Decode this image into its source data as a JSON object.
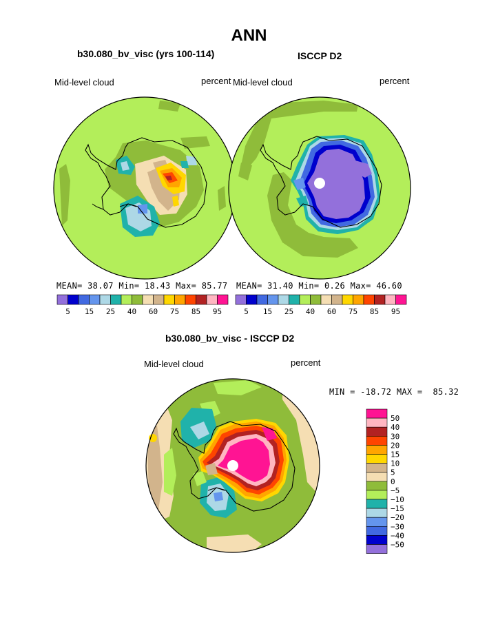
{
  "page": {
    "title": "ANN",
    "panel_left_title": "b30.080_bv_visc (yrs 100-114)",
    "panel_right_title": "ISCCP D2",
    "panel_diff_title": "b30.080_bv_visc - ISCCP D2"
  },
  "chart_data": [
    {
      "type": "heatmap",
      "projection": "polar-stereographic, south pole",
      "title": "b30.080_bv_visc (yrs 100-114)",
      "variable_label": "Mid-level cloud",
      "units_label": "percent",
      "stats": {
        "mean_label": "MEAN=",
        "mean": "38.07",
        "min_label": "Min=",
        "min": "18.43",
        "max_label": "Max=",
        "max": "85.77"
      },
      "colorbar": {
        "orientation": "horizontal",
        "levels": [
          5,
          10,
          15,
          20,
          25,
          30,
          40,
          50,
          60,
          70,
          75,
          80,
          85,
          90,
          95
        ],
        "tick_labels": [
          "5",
          "15",
          "25",
          "40",
          "60",
          "75",
          "85",
          "95"
        ],
        "colors": [
          "#9370DB",
          "#0000CD",
          "#4169E1",
          "#6495ED",
          "#ADD8E6",
          "#20B2AA",
          "#B3EE5A",
          "#8FBC3A",
          "#F5DEB3",
          "#D2B48C",
          "#FFD700",
          "#FFA500",
          "#FF4500",
          "#B22222",
          "#FFB6C1",
          "#FF1493"
        ]
      },
      "dominant_value_range": "40-50 over Southern Ocean; 60-85 over East Antarctic interior"
    },
    {
      "type": "heatmap",
      "projection": "polar-stereographic, south pole",
      "title": "ISCCP D2",
      "variable_label": "Mid-level cloud",
      "units_label": "percent",
      "stats": {
        "mean_label": "MEAN=",
        "mean": "31.40",
        "min_label": "Min=",
        "min": "0.26",
        "max_label": "Max=",
        "max": "46.60"
      },
      "colorbar": {
        "orientation": "horizontal",
        "levels": [
          5,
          10,
          15,
          20,
          25,
          30,
          40,
          50,
          60,
          70,
          75,
          80,
          85,
          90,
          95
        ],
        "tick_labels": [
          "5",
          "15",
          "25",
          "40",
          "60",
          "75",
          "85",
          "95"
        ],
        "colors": [
          "#9370DB",
          "#0000CD",
          "#4169E1",
          "#6495ED",
          "#ADD8E6",
          "#20B2AA",
          "#B3EE5A",
          "#8FBC3A",
          "#F5DEB3",
          "#D2B48C",
          "#FFD700",
          "#FFA500",
          "#FF4500",
          "#B22222",
          "#FFB6C1",
          "#FF1493"
        ]
      },
      "dominant_value_range": "40-50 over ocean; below 5 over Antarctic interior"
    },
    {
      "type": "heatmap",
      "projection": "polar-stereographic, south pole",
      "title": "b30.080_bv_visc - ISCCP D2",
      "variable_label": "Mid-level cloud",
      "units_label": "percent",
      "stats": {
        "text": "MIN = -18.72 MAX =  85.32",
        "min": -18.72,
        "max": 85.32
      },
      "colorbar": {
        "orientation": "vertical",
        "levels": [
          -50,
          -40,
          -30,
          -20,
          -15,
          -10,
          -5,
          0,
          5,
          10,
          15,
          20,
          30,
          40,
          50
        ],
        "tick_labels": [
          "50",
          "40",
          "30",
          "20",
          "15",
          "10",
          "5",
          "0",
          "−5",
          "−10",
          "−15",
          "−20",
          "−30",
          "−40",
          "−50"
        ],
        "colors_top_to_bottom": [
          "#FF1493",
          "#FFB6C1",
          "#B22222",
          "#FF4500",
          "#FFA500",
          "#FFD700",
          "#D2B48C",
          "#F5DEB3",
          "#8FBC3A",
          "#B3EE5A",
          "#20B2AA",
          "#ADD8E6",
          "#6495ED",
          "#4169E1",
          "#0000CD",
          "#9370DB"
        ]
      },
      "dominant_value_range": "above 50 over Antarctic interior; -5 to 0 over most ocean"
    }
  ]
}
